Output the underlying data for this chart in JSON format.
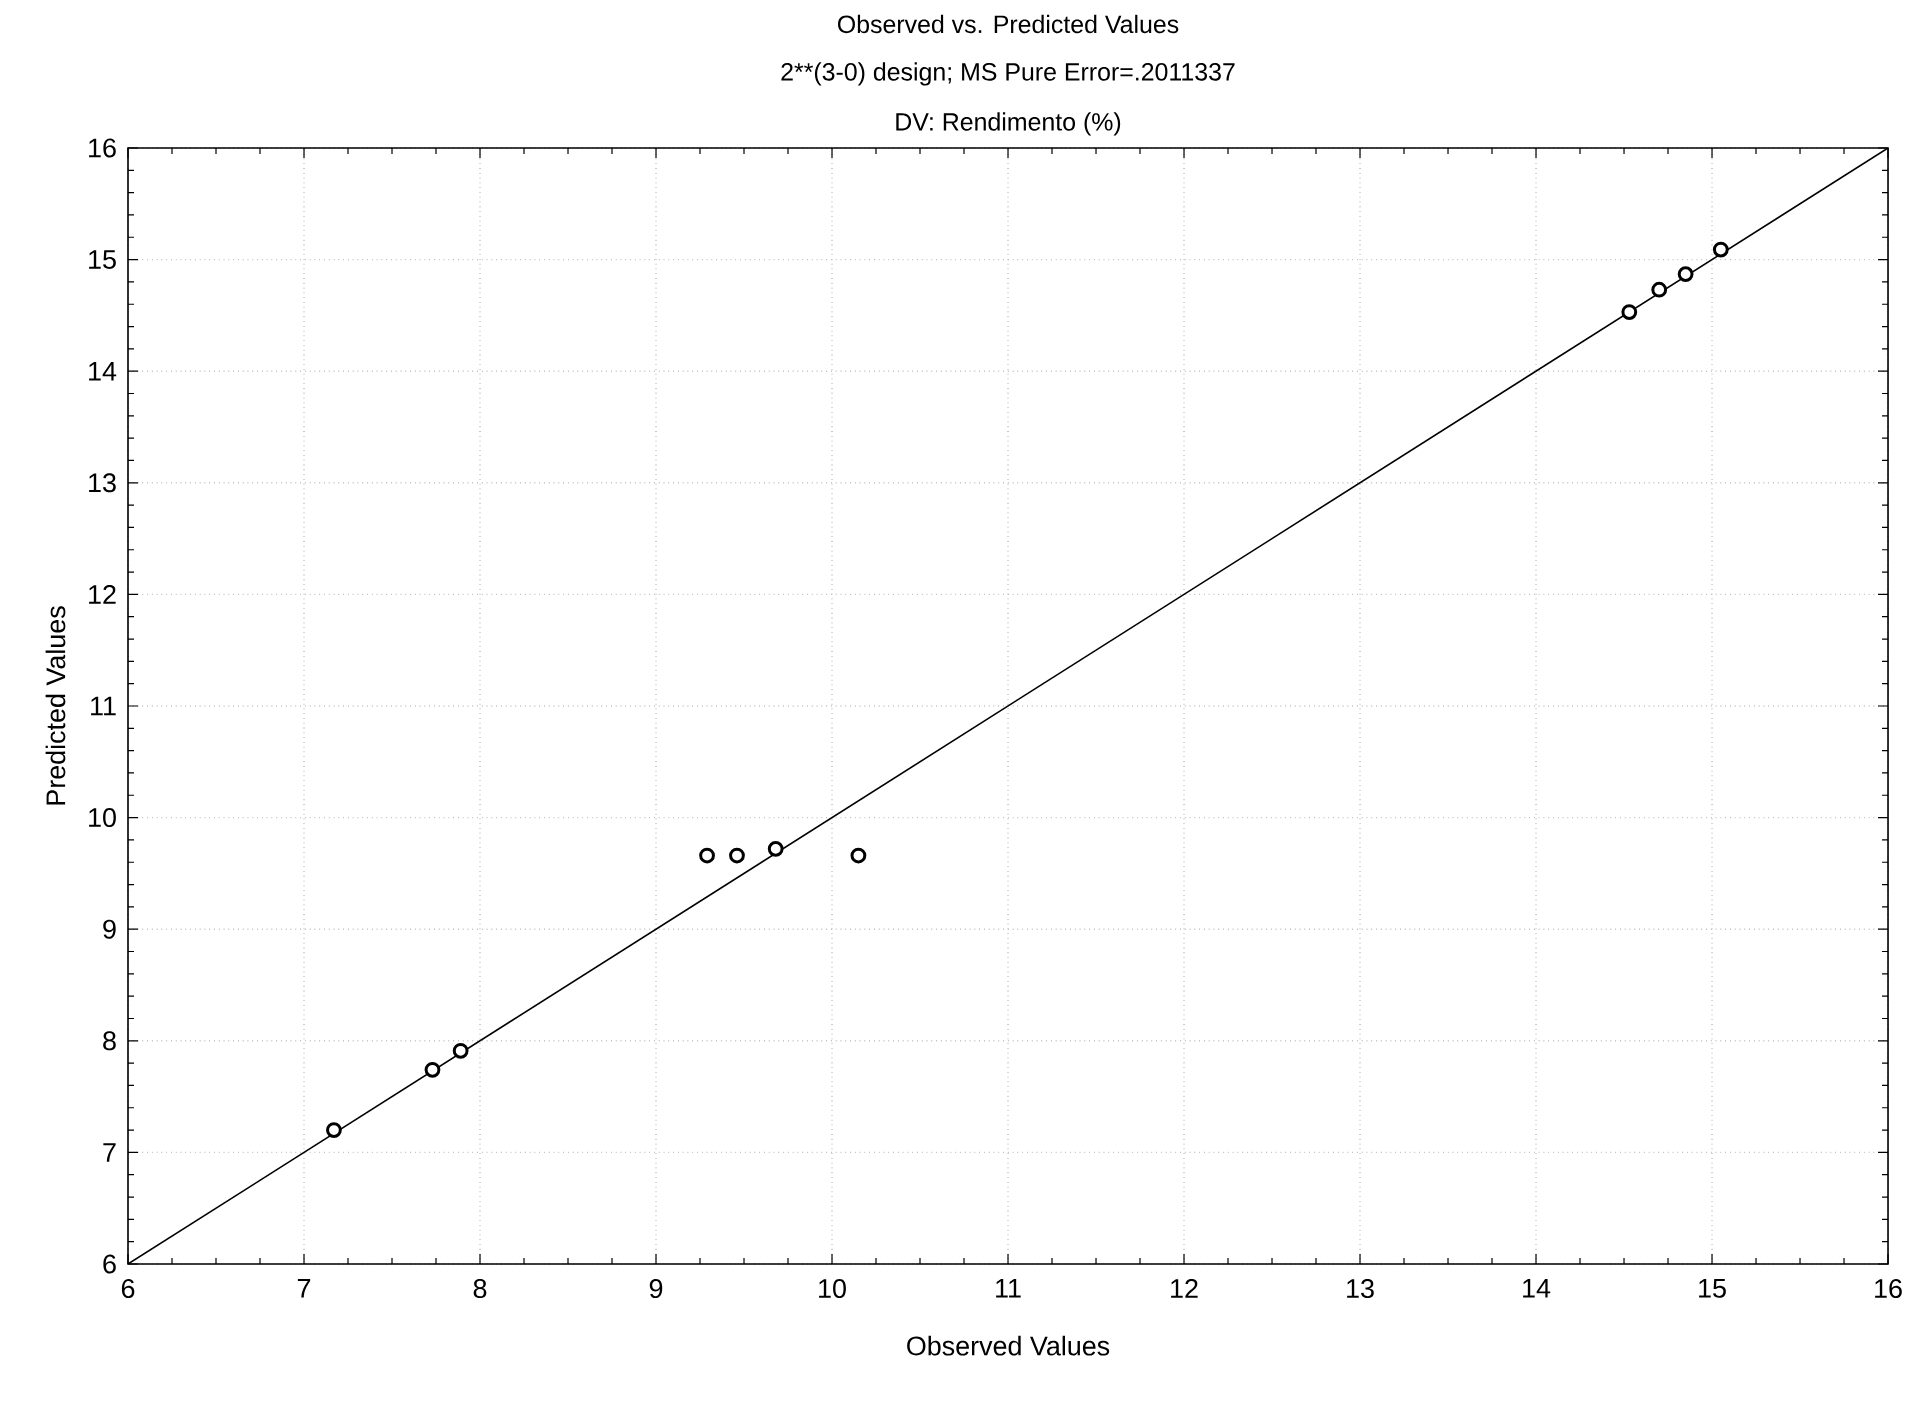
{
  "chart_data": {
    "type": "scatter",
    "title": "Observed vs. Predicted Values",
    "subtitle": "2**(3-0) design; MS Pure Error=.2011337",
    "annotations": [
      "DV: Rendimento (%)"
    ],
    "marker": "circle",
    "xlabel": "Observed Values",
    "ylabel": "Predicted Values",
    "series": [
      {
        "color": "#000000",
        "x": [
          7.17,
          7.73,
          7.89,
          9.29,
          9.46,
          9.68,
          10.15,
          14.53,
          14.7,
          14.85,
          15.05
        ],
        "values": [
          7.2,
          7.74,
          7.91,
          9.66,
          9.66,
          9.72,
          9.66,
          14.53,
          14.73,
          14.87,
          15.09
        ]
      },
      {
        "type": "line",
        "color": "#000000",
        "line_style": "solid",
        "marker": "none",
        "x": [
          6,
          16
        ],
        "values": [
          6,
          16
        ]
      }
    ],
    "xlim": [
      6,
      16
    ],
    "ylim": [
      6,
      16
    ],
    "xticks": [
      6,
      7,
      8,
      9,
      10,
      11,
      12,
      13,
      14,
      15,
      16
    ],
    "yticks": [
      6,
      7,
      8,
      9,
      10,
      11,
      12,
      13,
      14,
      15,
      16
    ],
    "grid": true
  }
}
